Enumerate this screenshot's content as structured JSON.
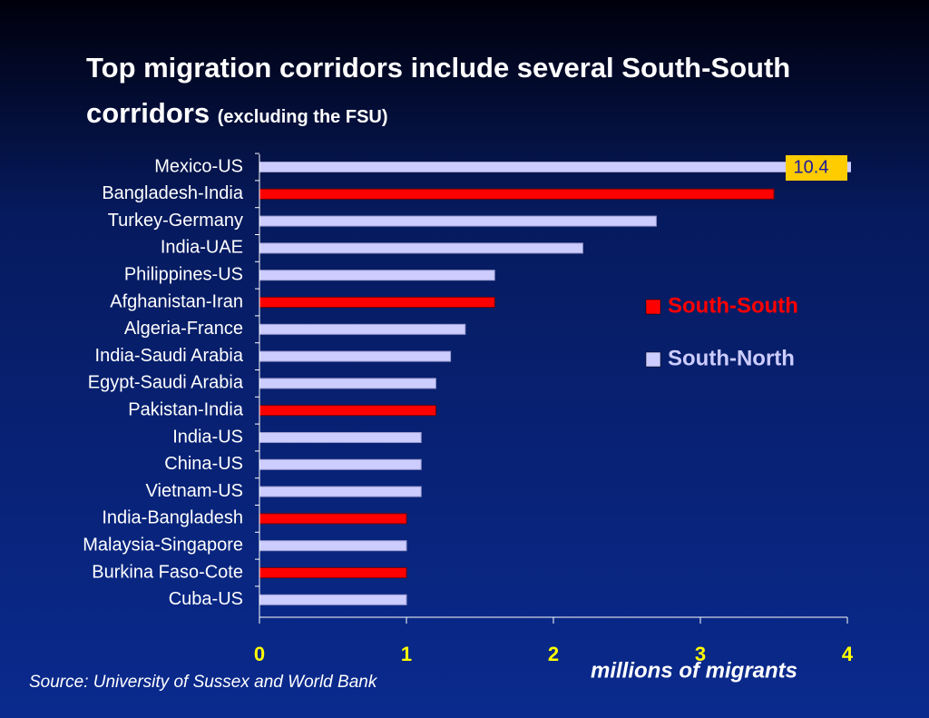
{
  "chart_data": {
    "type": "barh",
    "title": "Top migration corridors include several South-South corridors",
    "subtitle": "(excluding the FSU)",
    "categories": [
      "Mexico-US",
      "Bangladesh-India",
      "Turkey-Germany",
      "India-UAE",
      "Philippines-US",
      "Afghanistan-Iran",
      "Algeria-France",
      "India-Saudi Arabia",
      "Egypt-Saudi Arabia",
      "Pakistan-India",
      "India-US",
      "China-US",
      "Vietnam-US",
      "India-Bangladesh",
      "Malaysia-Singapore",
      "Burkina Faso-Cote",
      "Cuba-US"
    ],
    "series": [
      {
        "name": "South-South",
        "color": "#ff0000",
        "values": [
          null,
          3.5,
          null,
          null,
          null,
          1.6,
          null,
          null,
          null,
          1.2,
          null,
          null,
          null,
          1.0,
          null,
          1.0,
          null
        ]
      },
      {
        "name": "South-North",
        "color": "#ccccff",
        "values": [
          10.4,
          null,
          2.7,
          2.2,
          1.6,
          null,
          1.4,
          1.3,
          1.2,
          null,
          1.1,
          1.1,
          1.1,
          null,
          1.0,
          null,
          1.0
        ],
        "value_labels": [
          "10.4",
          null,
          null,
          null,
          null,
          null,
          null,
          null,
          null,
          null,
          null,
          null,
          null,
          null,
          null,
          null,
          null
        ]
      }
    ],
    "xlim": [
      0,
      4
    ],
    "xticks": [
      0,
      1,
      2,
      3,
      4
    ],
    "xlabel": "millions of migrants",
    "source": "Source: University of Sussex and World Bank"
  }
}
